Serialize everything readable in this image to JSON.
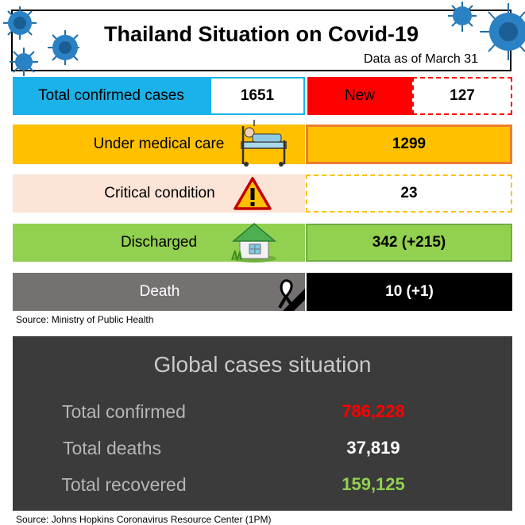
{
  "header": {
    "title": "Thailand Situation on Covid-19",
    "as_of": "Data as of March 31"
  },
  "thailand": {
    "total_confirmed_label": "Total confirmed cases",
    "total_confirmed_value": "1651",
    "new_label": "New",
    "new_value": "127",
    "under_care_label": "Under medical care",
    "under_care_value": "1299",
    "critical_label": "Critical condition",
    "critical_value": "23",
    "discharged_label": "Discharged",
    "discharged_value": "342 (+215)",
    "death_label": "Death",
    "death_value": "10 (+1)",
    "source": "Source: Ministry of Public Health"
  },
  "global": {
    "title": "Global cases situation",
    "confirmed_label": "Total confirmed",
    "confirmed_value": "786,228",
    "deaths_label": "Total deaths",
    "deaths_value": "37,819",
    "recovered_label": "Total recovered",
    "recovered_value": "159,125",
    "source": "Source: Johns Hopkins Coronavirus Resource Center (1PM)"
  },
  "colors": {
    "confirmed_blue": "#1ab2e8",
    "new_red": "#ff0000",
    "care_orange": "#ffc000",
    "discharged_green": "#92d050",
    "death_gray": "#767171",
    "global_confirmed": "#ff0000",
    "global_deaths": "#ffffff",
    "global_recovered": "#92d050"
  },
  "icons": [
    "virus-icon",
    "hospital-bed-icon",
    "warning-icon",
    "house-icon",
    "mourning-ribbon-icon"
  ]
}
